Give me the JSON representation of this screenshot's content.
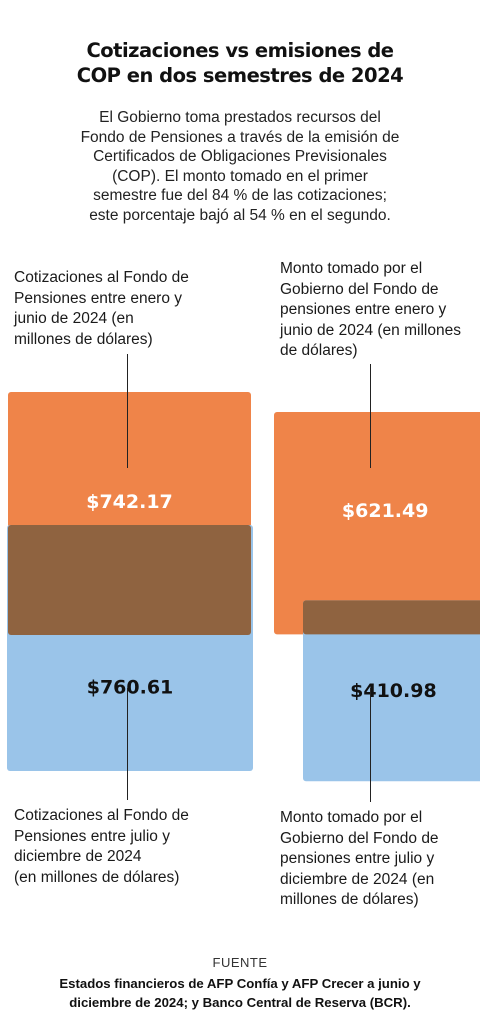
{
  "title_line1": "Cotizaciones vs emisiones de",
  "title_line2": "COP en dos semestres de 2024",
  "subtitle_lines": [
    "El Gobierno toma prestados recursos del",
    "Fondo de Pensiones a través de la emisión de",
    "Certificados de Obligaciones Previsionales",
    "(COP). El monto tomado en el primer",
    "semestre fue del 84 % de las cotizaciones;",
    "este porcentaje bajó al 54 % en el segundo."
  ],
  "labels": {
    "h1_contrib": [
      "Cotizaciones al Fondo de",
      "Pensiones entre enero y",
      "junio de 2024 (en",
      "millones de dólares)"
    ],
    "h1_cop": [
      "Monto tomado por el",
      "Gobierno del Fondo de",
      "pensiones entre enero y",
      "junio de 2024 (en millones",
      "de dólares)"
    ],
    "h2_contrib": [
      "Cotizaciones al Fondo de",
      "Pensiones entre julio y",
      "diciembre de 2024",
      "(en millones de dólares)"
    ],
    "h2_cop": [
      "Monto tomado por el",
      "Gobierno del Fondo de",
      "pensiones entre julio y",
      "diciembre de 2024 (en",
      "millones de dólares)"
    ]
  },
  "chart_data": {
    "type": "area",
    "categories": [
      "Enero–junio 2024",
      "Julio–diciembre 2024"
    ],
    "series": [
      {
        "values": [
          742.17,
          621.49
        ],
        "value_labels": [
          "$742.17",
          "$621.49"
        ],
        "color": "#ef8449"
      },
      {
        "values": [
          760.61,
          410.98
        ],
        "value_labels": [
          "$760.61",
          "$410.98"
        ],
        "color": "#9ac4e9"
      }
    ],
    "overlap_color": "#8f6340",
    "grid": false,
    "legend": "none"
  },
  "source": {
    "label": "FUENTE",
    "lines": [
      "Estados financieros de AFP Confía y AFP Crecer a junio y",
      "diciembre de 2024; y Banco Central de Reserva (BCR)."
    ]
  }
}
